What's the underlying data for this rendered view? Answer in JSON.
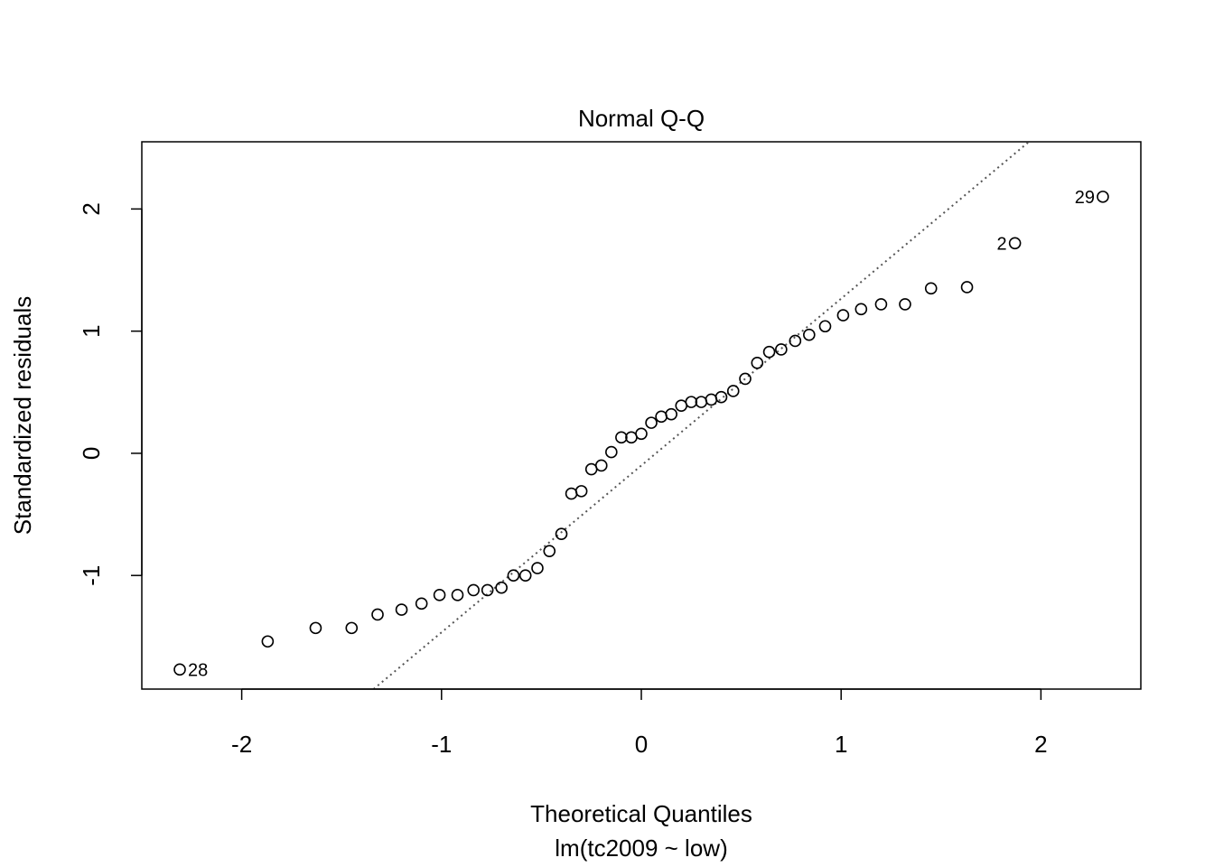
{
  "chart_data": {
    "type": "scatter",
    "title": "Normal Q-Q",
    "xlabel": "Theoretical Quantiles",
    "xsublabel": "lm(tc2009 ~ low)",
    "ylabel": "Standardized residuals",
    "xlim": [
      -2.5,
      2.5
    ],
    "ylim": [
      -1.93,
      2.55
    ],
    "xticks": [
      -2,
      -1,
      0,
      1,
      2
    ],
    "yticks": [
      -1,
      0,
      1,
      2
    ],
    "xtick_labels": [
      "-2",
      "-1",
      "0",
      "1",
      "2"
    ],
    "ytick_labels": [
      "-1",
      "0",
      "1",
      "2"
    ],
    "reference_line": {
      "style": "dotted",
      "color": "#555555",
      "points": [
        [
          -1.34,
          -1.93
        ],
        [
          1.94,
          2.55
        ]
      ]
    },
    "series": [
      {
        "marker": "open-circle",
        "color": "#000000",
        "x": [
          -2.31,
          -1.87,
          -1.63,
          -1.45,
          -1.32,
          -1.2,
          -1.1,
          -1.01,
          -0.92,
          -0.84,
          -0.77,
          -0.7,
          -0.64,
          -0.58,
          -0.52,
          -0.46,
          -0.4,
          -0.35,
          -0.3,
          -0.25,
          -0.2,
          -0.15,
          -0.1,
          -0.05,
          0.0,
          0.05,
          0.1,
          0.15,
          0.2,
          0.25,
          0.3,
          0.35,
          0.4,
          0.46,
          0.52,
          0.58,
          0.64,
          0.7,
          0.77,
          0.84,
          0.92,
          1.01,
          1.1,
          1.2,
          1.32,
          1.45,
          1.63,
          1.87,
          2.31
        ],
        "y": [
          -1.77,
          -1.54,
          -1.43,
          -1.43,
          -1.32,
          -1.28,
          -1.23,
          -1.16,
          -1.16,
          -1.12,
          -1.12,
          -1.1,
          -1.0,
          -1.0,
          -0.94,
          -0.8,
          -0.66,
          -0.33,
          -0.31,
          -0.13,
          -0.1,
          0.01,
          0.13,
          0.13,
          0.16,
          0.25,
          0.3,
          0.32,
          0.39,
          0.42,
          0.42,
          0.44,
          0.46,
          0.51,
          0.61,
          0.74,
          0.83,
          0.85,
          0.92,
          0.97,
          1.04,
          1.13,
          1.18,
          1.22,
          1.22,
          1.35,
          1.36,
          1.72,
          2.1
        ]
      }
    ],
    "annotations": [
      {
        "text": "28",
        "x": -2.31,
        "y": -1.77,
        "side": "right"
      },
      {
        "text": "2",
        "x": 1.87,
        "y": 1.72,
        "side": "left"
      },
      {
        "text": "29",
        "x": 2.31,
        "y": 2.1,
        "side": "left"
      }
    ]
  }
}
